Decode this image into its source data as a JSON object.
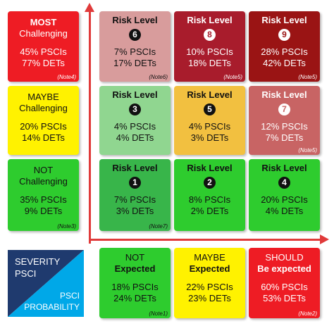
{
  "colors": {
    "red": "#ee1c24",
    "yellow": "#fff200",
    "green": "#2ecc2e",
    "pink": "#d89c9c",
    "dark_red": "#a81c2c",
    "deep_red": "#9a1414",
    "light_green": "#90d690",
    "orange": "#f2c040",
    "rose": "#c86464",
    "mid_green": "#38b54a",
    "axis": "#e03a3a",
    "navy": "#1f3a6e",
    "cyan": "#00a8e8"
  },
  "severity_rows": [
    {
      "line1": "MOST",
      "line2": "Challenging",
      "pscis": "45% PSCIs",
      "dets": "77% DETs",
      "note": "(Note4)"
    },
    {
      "line1": "MAYBE",
      "line2": "Challenging",
      "pscis": "20% PSCIs",
      "dets": "14% DETs",
      "note": ""
    },
    {
      "line1": "NOT",
      "line2": "Challenging",
      "pscis": "35% PSCIs",
      "dets": "9% DETs",
      "note": "(Note3)"
    }
  ],
  "probability_cols": [
    {
      "line1": "NOT",
      "line2": "Expected",
      "pscis": "18% PSCIs",
      "dets": "24% DETs",
      "note": "(Note1)"
    },
    {
      "line1": "MAYBE",
      "line2": "Expected",
      "pscis": "22% PSCIs",
      "dets": "23% DETs",
      "note": ""
    },
    {
      "line1": "SHOULD",
      "line2": "Be expected",
      "pscis": "60% PSCIs",
      "dets": "53% DETs",
      "note": "(Note2)"
    }
  ],
  "cells": [
    {
      "title": "Risk Level",
      "level": "6",
      "pscis": "7% PSCIs",
      "dets": "17% DETs",
      "note": "(Note6)"
    },
    {
      "title": "Risk Level",
      "level": "8",
      "pscis": "10% PSCIs",
      "dets": "18% DETs",
      "note": "(Note5)"
    },
    {
      "title": "Risk Level",
      "level": "9",
      "pscis": "28% PSCIs",
      "dets": "42% DETs",
      "note": "(Note5)"
    },
    {
      "title": "Risk Level",
      "level": "3",
      "pscis": "4% PSCIs",
      "dets": "4% DETs",
      "note": ""
    },
    {
      "title": "Risk Level",
      "level": "5",
      "pscis": "4% PSCIs",
      "dets": "3% DETs",
      "note": ""
    },
    {
      "title": "Risk Level",
      "level": "7",
      "pscis": "12% PSCIs",
      "dets": "7% DETs",
      "note": "(Note5)"
    },
    {
      "title": "Risk Level",
      "level": "1",
      "pscis": "7% PSCIs",
      "dets": "3% DETs",
      "note": "(Note7)"
    },
    {
      "title": "Risk Level",
      "level": "2",
      "pscis": "8% PSCIs",
      "dets": "2% DETs",
      "note": ""
    },
    {
      "title": "Risk Level",
      "level": "4",
      "pscis": "20% PSCIs",
      "dets": "4% DETs",
      "note": ""
    }
  ],
  "legend": {
    "severity_line1": "SEVERITY",
    "severity_line2": "PSCI",
    "probability_line1": "PSCI",
    "probability_line2": "PROBABILITY"
  }
}
